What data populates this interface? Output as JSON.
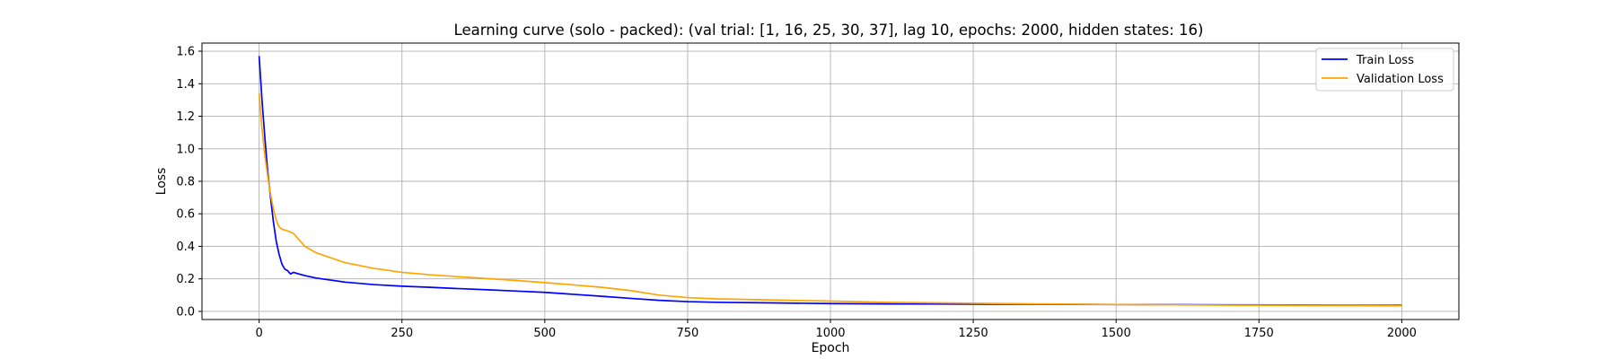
{
  "chart_data": {
    "type": "line",
    "title": "Learning curve (solo - packed): (val trial: [1, 16, 25, 30, 37], lag 10, epochs: 2000, hidden states: 16)",
    "xlabel": "Epoch",
    "ylabel": "Loss",
    "xlim": [
      -100,
      2100
    ],
    "ylim": [
      -0.05,
      1.65
    ],
    "x_ticks": [
      0,
      250,
      500,
      750,
      1000,
      1250,
      1500,
      1750,
      2000
    ],
    "y_ticks": [
      0.0,
      0.2,
      0.4,
      0.6,
      0.8,
      1.0,
      1.2,
      1.4,
      1.6
    ],
    "x_tick_labels": [
      "0",
      "250",
      "500",
      "750",
      "1000",
      "1250",
      "1500",
      "1750",
      "2000"
    ],
    "y_tick_labels": [
      "0.0",
      "0.2",
      "0.4",
      "0.6",
      "0.8",
      "1.0",
      "1.2",
      "1.4",
      "1.6"
    ],
    "grid": true,
    "legend_position": "top-right",
    "series": [
      {
        "name": "Train Loss",
        "color": "#0000ff",
        "x": [
          0,
          5,
          10,
          15,
          20,
          25,
          30,
          35,
          40,
          45,
          50,
          55,
          60,
          70,
          80,
          100,
          150,
          200,
          250,
          300,
          350,
          400,
          450,
          500,
          550,
          600,
          650,
          700,
          750,
          800,
          900,
          1000,
          1100,
          1200,
          1300,
          1400,
          1500,
          1600,
          1700,
          1800,
          1900,
          2000
        ],
        "y": [
          1.57,
          1.3,
          1.07,
          0.86,
          0.7,
          0.55,
          0.43,
          0.35,
          0.29,
          0.26,
          0.25,
          0.23,
          0.24,
          0.23,
          0.22,
          0.205,
          0.18,
          0.165,
          0.155,
          0.148,
          0.14,
          0.133,
          0.125,
          0.117,
          0.105,
          0.093,
          0.08,
          0.068,
          0.06,
          0.056,
          0.052,
          0.048,
          0.046,
          0.045,
          0.044,
          0.043,
          0.042,
          0.041,
          0.04,
          0.039,
          0.038,
          0.038
        ]
      },
      {
        "name": "Validation Loss",
        "color": "#ffa500",
        "x": [
          0,
          5,
          10,
          15,
          20,
          25,
          30,
          35,
          40,
          45,
          50,
          60,
          70,
          80,
          90,
          100,
          150,
          200,
          250,
          300,
          350,
          400,
          450,
          500,
          550,
          600,
          650,
          700,
          750,
          800,
          900,
          1000,
          1100,
          1200,
          1300,
          1400,
          1500,
          1600,
          1700,
          1800,
          1900,
          2000
        ],
        "y": [
          1.34,
          1.12,
          0.96,
          0.83,
          0.72,
          0.63,
          0.56,
          0.52,
          0.505,
          0.5,
          0.495,
          0.48,
          0.44,
          0.4,
          0.38,
          0.36,
          0.3,
          0.265,
          0.24,
          0.225,
          0.213,
          0.202,
          0.19,
          0.177,
          0.163,
          0.148,
          0.128,
          0.1,
          0.085,
          0.077,
          0.07,
          0.063,
          0.056,
          0.052,
          0.048,
          0.045,
          0.042,
          0.04,
          0.038,
          0.037,
          0.036,
          0.035
        ]
      }
    ]
  }
}
